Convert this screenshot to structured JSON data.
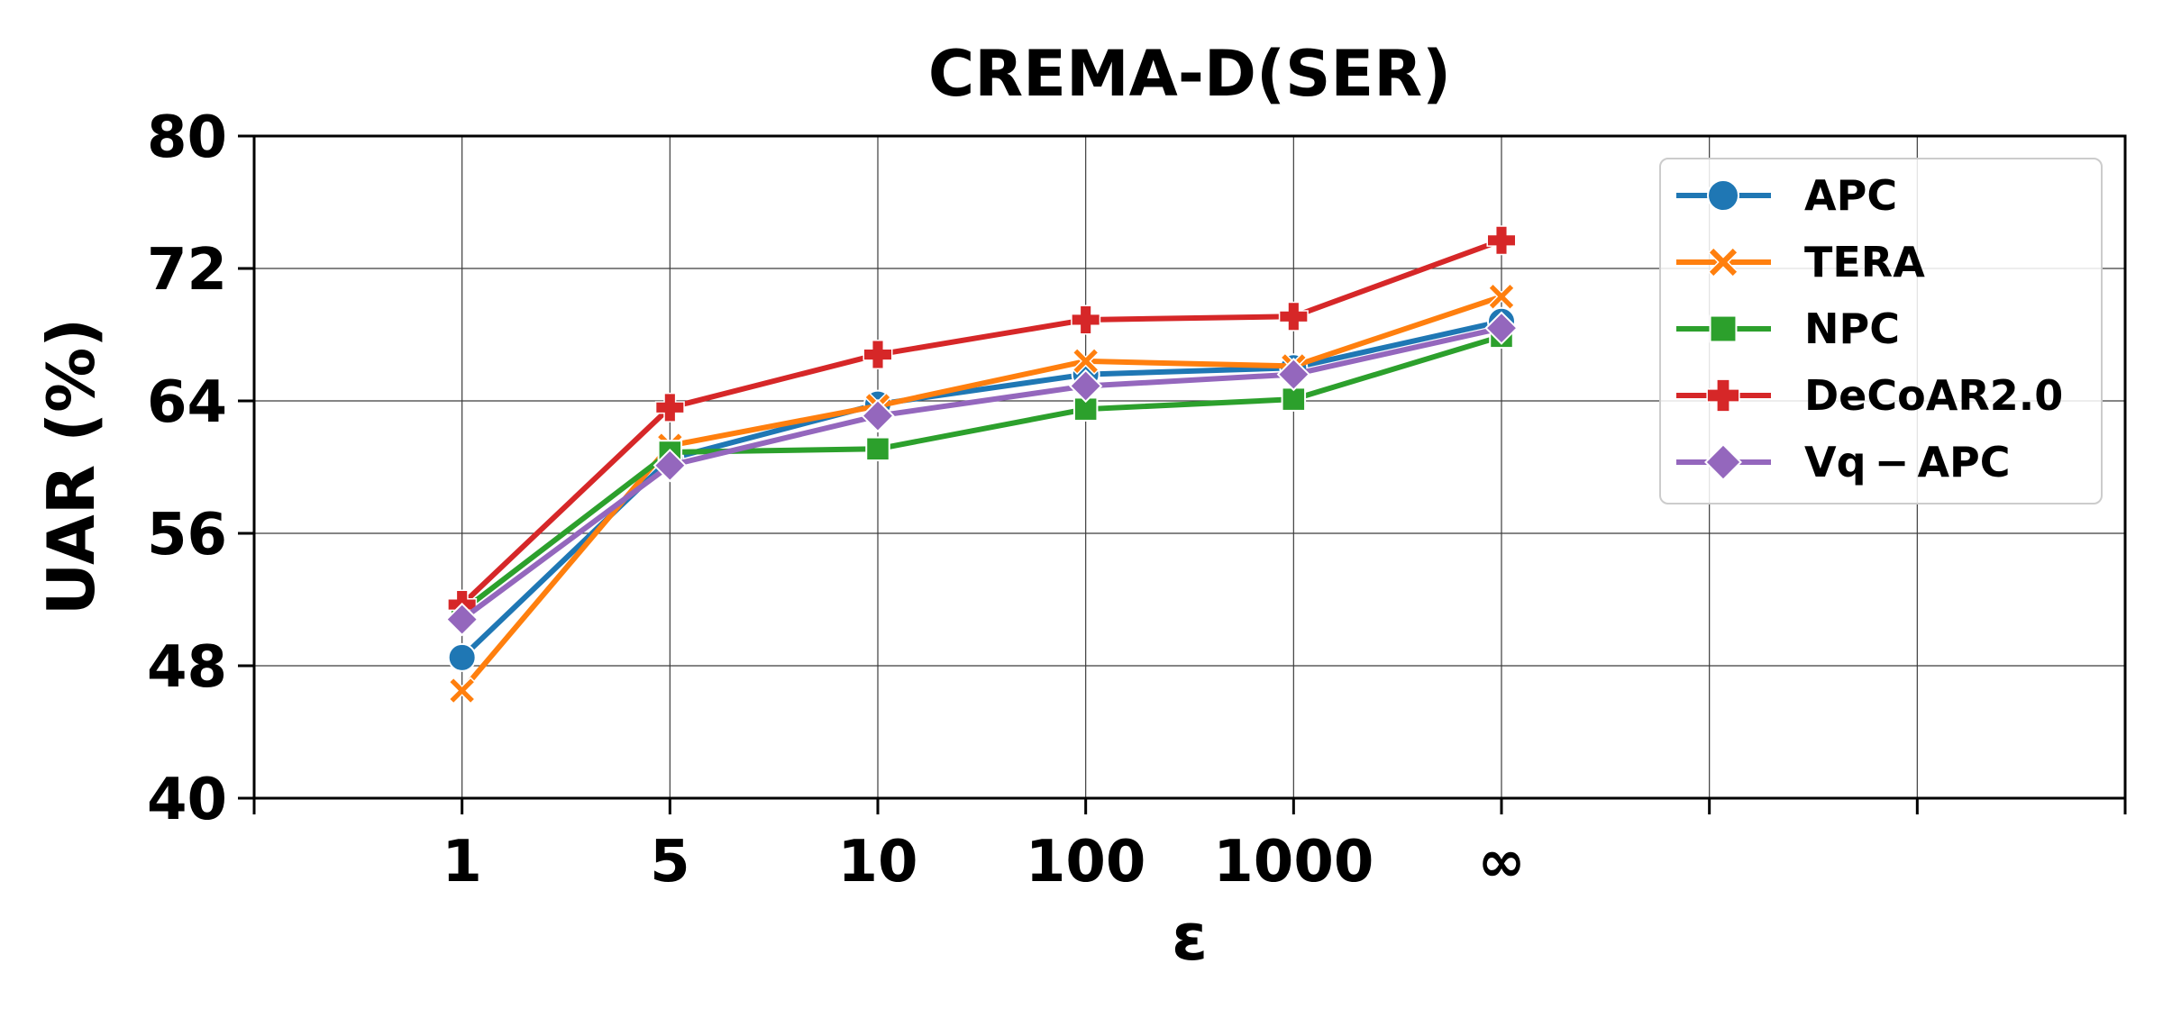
{
  "chart_data": {
    "type": "line",
    "title": "CREMA-D(SER)",
    "xlabel": "ε",
    "ylabel": "UAR (%)",
    "x_ticks": [
      "1",
      "5",
      "10",
      "100",
      "1000",
      "∞",
      "",
      "",
      ""
    ],
    "y_ticks": [
      "40",
      "48",
      "56",
      "64",
      "72",
      "80"
    ],
    "y_tick_values": [
      40,
      48,
      56,
      64,
      72,
      80
    ],
    "ylim": [
      40,
      80
    ],
    "grid": true,
    "legend_position": "top-right",
    "series": [
      {
        "name": "APC",
        "color": "#1f77b4",
        "marker": "circle",
        "values": [
          48.5,
          60.5,
          63.8,
          65.6,
          66.0,
          68.8
        ]
      },
      {
        "name": "TERA",
        "color": "#ff7f0e",
        "marker": "x",
        "values": [
          46.5,
          61.3,
          63.7,
          66.4,
          66.1,
          70.3
        ]
      },
      {
        "name": "NPC",
        "color": "#2ca02c",
        "marker": "square",
        "values": [
          51.3,
          60.9,
          61.1,
          63.5,
          64.1,
          67.9
        ]
      },
      {
        "name": "DeCoAR2.0",
        "color": "#d62728",
        "marker": "plus",
        "values": [
          51.7,
          63.6,
          66.8,
          68.9,
          69.1,
          73.7
        ]
      },
      {
        "name": "Vq − APC",
        "color": "#9467bd",
        "marker": "diamond",
        "values": [
          50.8,
          60.1,
          63.1,
          64.9,
          65.6,
          68.4
        ]
      }
    ]
  }
}
